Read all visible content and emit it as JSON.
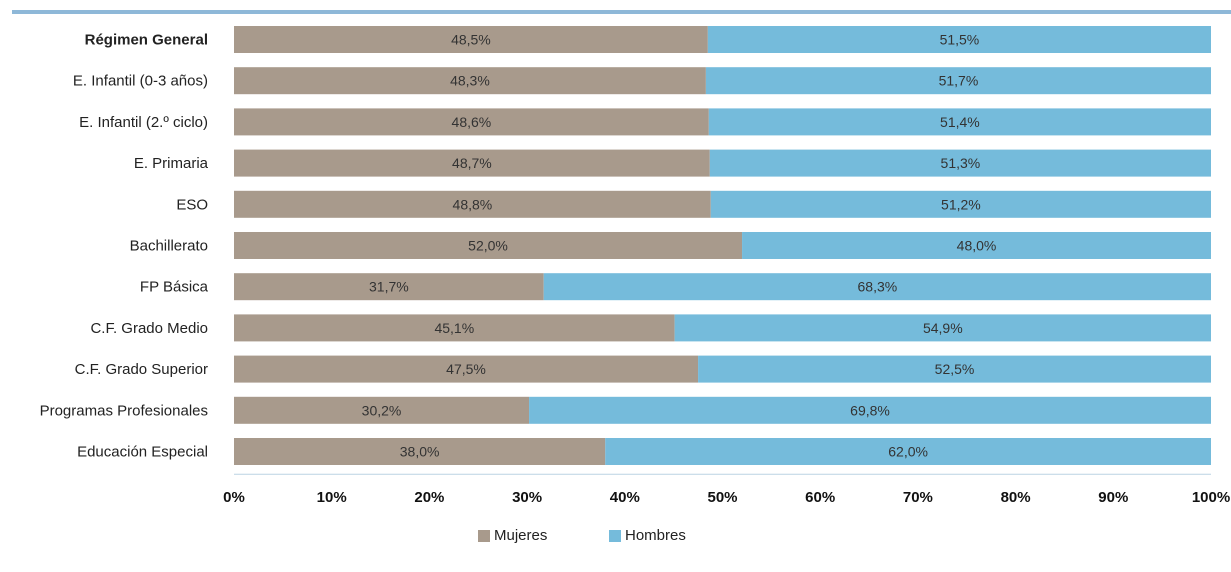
{
  "chart_data": {
    "type": "bar",
    "orientation": "horizontal",
    "stacked": true,
    "categories": [
      "Régimen General",
      "E. Infantil (0-3 años)",
      "E. Infantil (2.º ciclo)",
      "E. Primaria",
      "ESO",
      "Bachillerato",
      "FP Básica",
      "C.F. Grado Medio",
      "C.F. Grado Superior",
      "Programas Profesionales",
      "Educación Especial"
    ],
    "series": [
      {
        "name": "Mujeres",
        "color": "#a89a8c",
        "values": [
          48.5,
          48.3,
          48.6,
          48.7,
          48.8,
          52.0,
          31.7,
          45.1,
          47.5,
          30.2,
          38.0
        ],
        "labels": [
          "48,5%",
          "48,3%",
          "48,6%",
          "48,7%",
          "48,8%",
          "52,0%",
          "31,7%",
          "45,1%",
          "47,5%",
          "30,2%",
          "38,0%"
        ]
      },
      {
        "name": "Hombres",
        "color": "#75bbdb",
        "values": [
          51.5,
          51.7,
          51.4,
          51.3,
          51.2,
          48.0,
          68.3,
          54.9,
          52.5,
          69.8,
          62.0
        ],
        "labels": [
          "51,5%",
          "51,7%",
          "51,4%",
          "51,3%",
          "51,2%",
          "48,0%",
          "68,3%",
          "54,9%",
          "52,5%",
          "69,8%",
          "62,0%"
        ]
      }
    ],
    "xlim": [
      0,
      100
    ],
    "xticks": [
      "0%",
      "10%",
      "20%",
      "30%",
      "40%",
      "50%",
      "60%",
      "70%",
      "80%",
      "90%",
      "100%"
    ],
    "grid": false,
    "legend_position": "bottom-center",
    "bold_categories": [
      "Régimen General"
    ]
  }
}
